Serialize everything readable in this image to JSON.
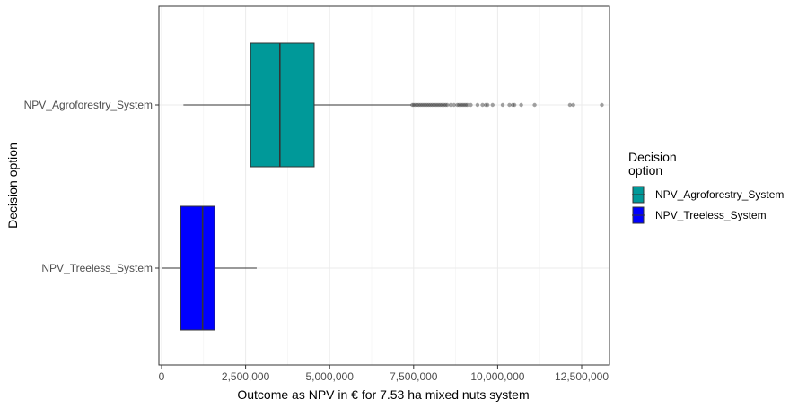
{
  "chart_data": {
    "type": "boxplot",
    "title": "",
    "xlabel": "Outcome as NPV in € for 7.53 ha mixed nuts system",
    "ylabel": "Decision option",
    "xlim": [
      -100000,
      13200000
    ],
    "x_ticks": [
      0,
      2500000,
      5000000,
      7500000,
      10000000,
      12500000
    ],
    "x_tick_labels": [
      "0",
      "2,500,000",
      "5,000,000",
      "7,500,000",
      "10,000,000",
      "12,500,000"
    ],
    "categories": [
      "NPV_Agroforestry_System",
      "NPV_Treeless_System"
    ],
    "grid": true,
    "legend": {
      "title": "Decision\noption",
      "position": "right",
      "entries": [
        "NPV_Agroforestry_System",
        "NPV_Treeless_System"
      ]
    },
    "series": [
      {
        "name": "NPV_Agroforestry_System",
        "color": "#009999",
        "whisker_low": 650000,
        "q1": 2650000,
        "median": 3520000,
        "q3": 4540000,
        "whisker_high": 7430000,
        "outliers": [
          7460000,
          7500000,
          7550000,
          7600000,
          7650000,
          7700000,
          7750000,
          7800000,
          7850000,
          7900000,
          7950000,
          8000000,
          8050000,
          8100000,
          8150000,
          8200000,
          8250000,
          8300000,
          8350000,
          8400000,
          8450000,
          8500000,
          8600000,
          8700000,
          8800000,
          8850000,
          8900000,
          8950000,
          9000000,
          9050000,
          9100000,
          9200000,
          9400000,
          9550000,
          9650000,
          9700000,
          9850000,
          10150000,
          10350000,
          10450000,
          10500000,
          10700000,
          11100000,
          12150000,
          12250000,
          13100000
        ]
      },
      {
        "name": "NPV_Treeless_System",
        "color": "#0000ff",
        "whisker_low": 0,
        "q1": 570000,
        "median": 1220000,
        "q3": 1580000,
        "whisker_high": 2830000,
        "outliers": []
      }
    ]
  }
}
